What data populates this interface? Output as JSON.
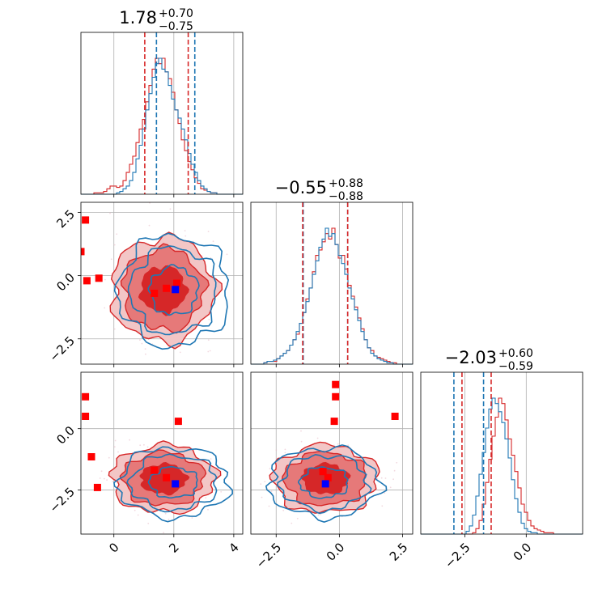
{
  "chart_data": {
    "type": "corner",
    "parameters": [
      {
        "name": "",
        "median": 1.78,
        "plus": 0.7,
        "minus": 0.75,
        "title_main": "1.78",
        "title_plus": "+0.70",
        "title_minus": "−0.75",
        "range": [
          -1.1,
          4.3
        ],
        "ticks": [
          0,
          2,
          4
        ],
        "tick_labels": [
          "0",
          "2",
          "4"
        ],
        "quantiles_red": [
          1.03,
          2.48
        ],
        "quantiles_blue": [
          1.42,
          2.7
        ]
      },
      {
        "name": "",
        "median": -0.55,
        "plus": 0.88,
        "minus": 0.88,
        "title_main": "−0.55",
        "title_plus": "+0.88",
        "title_minus": "−0.88",
        "range": [
          -3.5,
          2.9
        ],
        "ticks": [
          -2.5,
          0.0,
          2.5
        ],
        "tick_labels": [
          "−2.5",
          "0.0",
          "2.5"
        ],
        "quantiles_red": [
          -1.45,
          0.33
        ],
        "quantiles_blue": [
          -1.43,
          0.33
        ]
      },
      {
        "name": "",
        "median": -2.03,
        "plus": 0.6,
        "minus": 0.59,
        "title_main": "−2.03",
        "title_plus": "+0.60",
        "title_minus": "−0.59",
        "range": [
          -4.3,
          2.3
        ],
        "ticks": [
          -2.5,
          0.0
        ],
        "tick_labels": [
          "−2.5",
          "0.0"
        ],
        "quantiles_red": [
          -2.62,
          -1.43
        ],
        "quantiles_blue": [
          -2.95,
          -1.74
        ]
      }
    ],
    "series": [
      {
        "name": "",
        "color": "#d62728",
        "hist_1d": [
          [
            0,
            0,
            0,
            0,
            1,
            1,
            1,
            2,
            4,
            6,
            6,
            5,
            6,
            10,
            16,
            22,
            28,
            38,
            48,
            55,
            68,
            80,
            92,
            100,
            96,
            100,
            90,
            85,
            75,
            62,
            52,
            40,
            32,
            24,
            18,
            12,
            8,
            4,
            3,
            2,
            1,
            1,
            0,
            0,
            0,
            0,
            0,
            0,
            0,
            0
          ],
          [
            0,
            0,
            0,
            0,
            1,
            2,
            2,
            2,
            4,
            6,
            8,
            10,
            14,
            18,
            22,
            30,
            38,
            48,
            56,
            68,
            80,
            84,
            90,
            96,
            92,
            100,
            88,
            78,
            80,
            70,
            58,
            50,
            42,
            34,
            26,
            18,
            12,
            10,
            6,
            5,
            4,
            3,
            2,
            1,
            1,
            0,
            0,
            0,
            0,
            0
          ],
          [
            0,
            0,
            0,
            0,
            0,
            0,
            0,
            0,
            0,
            0,
            0,
            0,
            0,
            0,
            0,
            0,
            1,
            4,
            10,
            22,
            38,
            55,
            72,
            86,
            100,
            96,
            84,
            70,
            58,
            46,
            34,
            22,
            16,
            10,
            6,
            4,
            3,
            2,
            1,
            1,
            1,
            0,
            0,
            0,
            0,
            0,
            0,
            0,
            0,
            0
          ]
        ],
        "centers": [
          [
            1.65,
            -0.55
          ],
          [
            1.65,
            -2.05
          ],
          [
            -0.55,
            -2.05
          ]
        ],
        "sigmas": [
          [
            0.75,
            0.9
          ],
          [
            0.75,
            0.6
          ],
          [
            0.9,
            0.6
          ]
        ],
        "contour_levels": [
          1.0,
          1.8,
          2.3
        ]
      },
      {
        "name": "",
        "color": "#1f77b4",
        "hist_1d": [
          [
            0,
            0,
            0,
            0,
            0,
            0,
            0,
            0,
            0,
            0,
            0,
            1,
            2,
            4,
            6,
            10,
            16,
            26,
            36,
            48,
            62,
            74,
            86,
            96,
            100,
            92,
            90,
            80,
            70,
            62,
            56,
            48,
            40,
            30,
            22,
            16,
            10,
            6,
            4,
            2,
            1,
            1,
            0,
            0,
            0,
            0,
            0,
            0,
            0,
            0
          ],
          [
            0,
            0,
            0,
            0,
            1,
            2,
            2,
            3,
            4,
            6,
            8,
            10,
            14,
            18,
            24,
            30,
            38,
            46,
            56,
            66,
            76,
            86,
            92,
            100,
            94,
            96,
            88,
            80,
            74,
            66,
            56,
            48,
            40,
            32,
            24,
            18,
            12,
            8,
            6,
            4,
            3,
            2,
            1,
            1,
            0,
            0,
            0,
            0,
            0,
            0
          ],
          [
            0,
            0,
            0,
            0,
            0,
            0,
            0,
            0,
            0,
            0,
            0,
            0,
            0,
            0,
            2,
            6,
            14,
            28,
            44,
            60,
            78,
            92,
            100,
            96,
            90,
            82,
            70,
            56,
            40,
            26,
            16,
            8,
            4,
            2,
            1,
            1,
            0,
            0,
            0,
            0,
            0,
            0,
            0,
            0,
            0,
            0,
            0,
            0,
            0,
            0
          ]
        ],
        "centers": [
          [
            2.0,
            -0.6
          ],
          [
            2.0,
            -2.2
          ],
          [
            -0.6,
            -2.2
          ]
        ],
        "sigmas": [
          [
            0.8,
            0.95
          ],
          [
            0.8,
            0.62
          ],
          [
            0.95,
            0.62
          ]
        ],
        "contour_levels": [
          1.0,
          1.8,
          2.3
        ]
      }
    ],
    "markers": {
      "red_square": {
        "color": "#ff0000",
        "panel_1_0": [
          [
            -0.95,
            2.2
          ],
          [
            -1.1,
            0.95
          ],
          [
            -0.9,
            -0.2
          ],
          [
            -0.5,
            -0.1
          ],
          [
            1.35,
            -0.7
          ],
          [
            1.75,
            -0.5
          ],
          [
            2.1,
            -0.3
          ]
        ],
        "panel_2_0": [
          [
            -0.95,
            1.3
          ],
          [
            -0.95,
            0.5
          ],
          [
            -0.75,
            -1.15
          ],
          [
            -0.55,
            -2.4
          ],
          [
            1.35,
            -1.7
          ],
          [
            1.75,
            -2.0
          ],
          [
            2.15,
            0.3
          ]
        ],
        "panel_2_1": [
          [
            -0.15,
            1.8
          ],
          [
            -0.15,
            1.3
          ],
          [
            -0.2,
            0.3
          ],
          [
            2.2,
            0.5
          ],
          [
            -0.65,
            -1.75
          ],
          [
            -0.45,
            -2.0
          ]
        ]
      },
      "blue_square": {
        "color": "#0000ff",
        "panel_1_0": [
          [
            2.05,
            -0.55
          ]
        ],
        "panel_2_0": [
          [
            2.05,
            -2.25
          ]
        ],
        "panel_2_1": [
          [
            -0.55,
            -2.25
          ]
        ]
      }
    },
    "grid": true
  }
}
